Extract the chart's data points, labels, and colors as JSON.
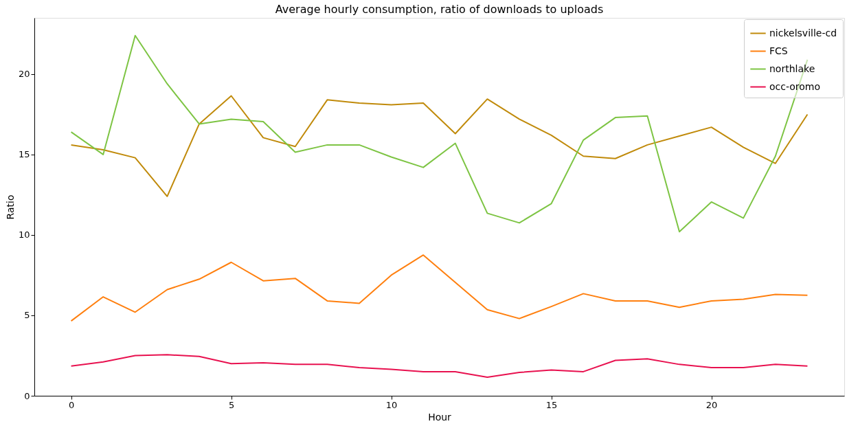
{
  "chart_data": {
    "type": "line",
    "title": "Average hourly consumption, ratio of downloads to uploads",
    "xlabel": "Hour",
    "ylabel": "Ratio",
    "x": [
      0,
      1,
      2,
      3,
      4,
      5,
      6,
      7,
      8,
      9,
      10,
      11,
      12,
      13,
      14,
      15,
      16,
      17,
      18,
      19,
      20,
      21,
      22,
      23
    ],
    "series": [
      {
        "name": "nickelsville-cd",
        "color": "#c08a0a",
        "values": [
          15.6,
          15.3,
          14.8,
          12.4,
          16.9,
          18.65,
          16.05,
          15.5,
          18.4,
          18.2,
          18.1,
          18.2,
          16.3,
          18.45,
          17.2,
          16.2,
          14.9,
          14.75,
          15.6,
          16.15,
          16.7,
          15.45,
          14.45,
          17.5
        ]
      },
      {
        "name": "FCS",
        "color": "#ff7f0e",
        "values": [
          4.65,
          6.15,
          5.2,
          6.6,
          7.25,
          8.3,
          7.15,
          7.3,
          5.9,
          5.75,
          7.5,
          8.75,
          7.05,
          5.35,
          4.8,
          5.55,
          6.35,
          5.9,
          5.9,
          5.5,
          5.9,
          6.0,
          6.3,
          6.25
        ]
      },
      {
        "name": "northlake",
        "color": "#7dc443",
        "values": [
          16.4,
          15.0,
          22.4,
          19.4,
          16.9,
          17.2,
          17.05,
          15.15,
          15.6,
          15.6,
          14.85,
          14.2,
          15.7,
          11.35,
          10.75,
          11.95,
          15.9,
          17.3,
          17.4,
          10.2,
          12.05,
          11.05,
          14.9,
          20.9
        ]
      },
      {
        "name": "occ-oromo",
        "color": "#e8114f",
        "values": [
          1.85,
          2.1,
          2.5,
          2.55,
          2.45,
          2.0,
          2.05,
          1.95,
          1.95,
          1.75,
          1.65,
          1.5,
          1.5,
          1.15,
          1.45,
          1.6,
          1.5,
          2.2,
          2.3,
          1.95,
          1.75,
          1.75,
          1.95,
          1.85
        ]
      }
    ],
    "xlim": [
      -1.15,
      24.15
    ],
    "ylim": [
      0,
      23.5
    ],
    "xticks": [
      0,
      5,
      10,
      15,
      20
    ],
    "yticks": [
      0,
      5,
      10,
      15,
      20
    ],
    "grid": false,
    "legend": "top right",
    "marker": "none",
    "line_style": "solid"
  }
}
